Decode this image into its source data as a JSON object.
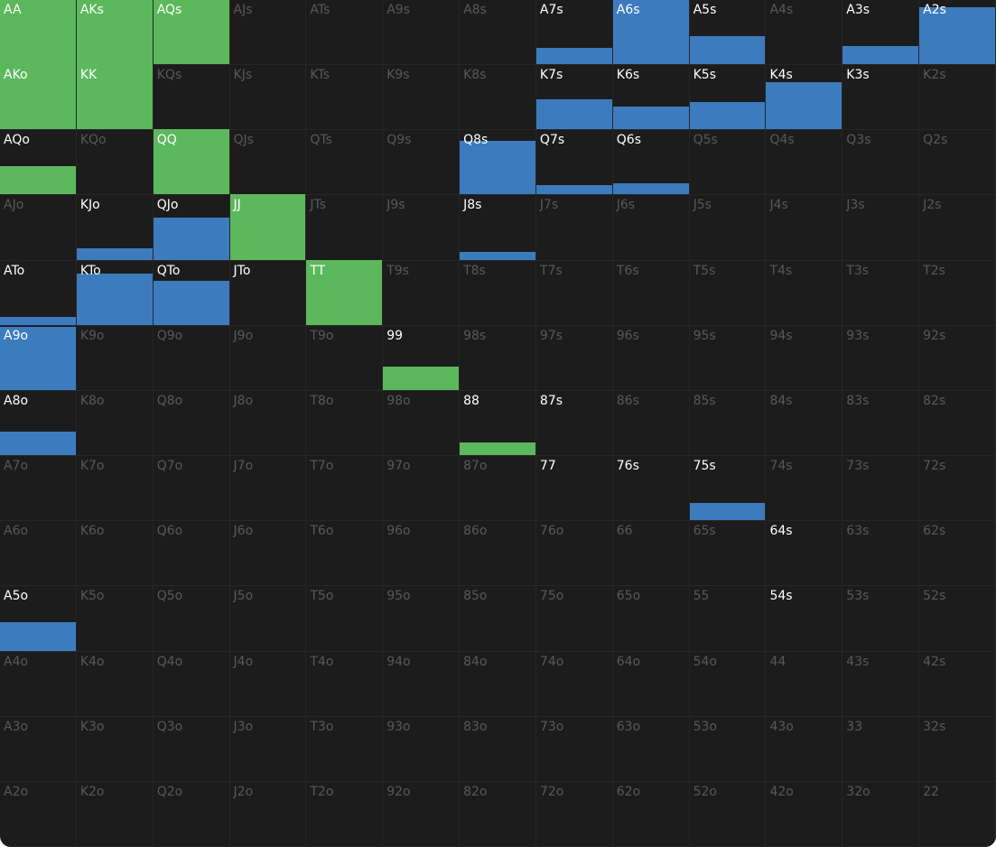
{
  "grid": {
    "rows": [
      [
        {
          "label": "AA",
          "active": true,
          "freq": 100,
          "color": "#5cb85c"
        },
        {
          "label": "AKs",
          "active": true,
          "freq": 100,
          "color": "#5cb85c"
        },
        {
          "label": "AQs",
          "active": true,
          "freq": 100,
          "color": "#5cb85c"
        },
        {
          "label": "AJs"
        },
        {
          "label": "ATs"
        },
        {
          "label": "A9s"
        },
        {
          "label": "A8s"
        },
        {
          "label": "A7s",
          "active": true,
          "freq": 25,
          "color": "#3d7bbf"
        },
        {
          "label": "A6s",
          "active": true,
          "freq": 100,
          "color": "#3d7bbf"
        },
        {
          "label": "A5s",
          "active": true,
          "freq": 43,
          "color": "#3d7bbf"
        },
        {
          "label": "A4s"
        },
        {
          "label": "A3s",
          "active": true,
          "freq": 28,
          "color": "#3d7bbf"
        },
        {
          "label": "A2s",
          "active": true,
          "freq": 88,
          "color": "#3d7bbf"
        }
      ],
      [
        {
          "label": "AKo",
          "active": true,
          "freq": 100,
          "color": "#5cb85c"
        },
        {
          "label": "KK",
          "active": true,
          "freq": 100,
          "color": "#5cb85c"
        },
        {
          "label": "KQs"
        },
        {
          "label": "KJs"
        },
        {
          "label": "KTs"
        },
        {
          "label": "K9s"
        },
        {
          "label": "K8s"
        },
        {
          "label": "K7s",
          "active": true,
          "freq": 46,
          "color": "#3d7bbf"
        },
        {
          "label": "K6s",
          "active": true,
          "freq": 35,
          "color": "#3d7bbf"
        },
        {
          "label": "K5s",
          "active": true,
          "freq": 42,
          "color": "#3d7bbf"
        },
        {
          "label": "K4s",
          "active": true,
          "freq": 72,
          "color": "#3d7bbf"
        },
        {
          "label": "K3s",
          "active": true
        },
        {
          "label": "K2s"
        }
      ],
      [
        {
          "label": "AQo",
          "active": true,
          "freq": 43,
          "color": "#5cb85c"
        },
        {
          "label": "KQo"
        },
        {
          "label": "QQ",
          "active": true,
          "freq": 100,
          "color": "#5cb85c"
        },
        {
          "label": "QJs"
        },
        {
          "label": "QTs"
        },
        {
          "label": "Q9s"
        },
        {
          "label": "Q8s",
          "active": true,
          "freq": 82,
          "color": "#3d7bbf"
        },
        {
          "label": "Q7s",
          "active": true,
          "freq": 14,
          "color": "#3d7bbf"
        },
        {
          "label": "Q6s",
          "active": true,
          "freq": 17,
          "color": "#3d7bbf"
        },
        {
          "label": "Q5s"
        },
        {
          "label": "Q4s"
        },
        {
          "label": "Q3s"
        },
        {
          "label": "Q2s"
        }
      ],
      [
        {
          "label": "AJo"
        },
        {
          "label": "KJo",
          "active": true,
          "freq": 18,
          "color": "#3d7bbf"
        },
        {
          "label": "QJo",
          "active": true,
          "freq": 64,
          "color": "#3d7bbf"
        },
        {
          "label": "JJ",
          "active": true,
          "freq": 100,
          "color": "#5cb85c"
        },
        {
          "label": "JTs"
        },
        {
          "label": "J9s"
        },
        {
          "label": "J8s",
          "active": true,
          "freq": 12,
          "color": "#3d7bbf"
        },
        {
          "label": "J7s"
        },
        {
          "label": "J6s"
        },
        {
          "label": "J5s"
        },
        {
          "label": "J4s"
        },
        {
          "label": "J3s"
        },
        {
          "label": "J2s"
        }
      ],
      [
        {
          "label": "ATo",
          "active": true,
          "freq": 12,
          "color": "#3d7bbf"
        },
        {
          "label": "KTo",
          "active": true,
          "freq": 79,
          "color": "#3d7bbf"
        },
        {
          "label": "QTo",
          "active": true,
          "freq": 67,
          "color": "#3d7bbf"
        },
        {
          "label": "JTo",
          "active": true
        },
        {
          "label": "TT",
          "active": true,
          "freq": 100,
          "color": "#5cb85c"
        },
        {
          "label": "T9s"
        },
        {
          "label": "T8s"
        },
        {
          "label": "T7s"
        },
        {
          "label": "T6s"
        },
        {
          "label": "T5s"
        },
        {
          "label": "T4s"
        },
        {
          "label": "T3s"
        },
        {
          "label": "T2s"
        }
      ],
      [
        {
          "label": "A9o",
          "active": true,
          "freq": 97,
          "color": "#3d7bbf"
        },
        {
          "label": "K9o"
        },
        {
          "label": "Q9o"
        },
        {
          "label": "J9o"
        },
        {
          "label": "T9o"
        },
        {
          "label": "99",
          "active": true,
          "freq": 36,
          "color": "#5cb85c"
        },
        {
          "label": "98s"
        },
        {
          "label": "97s"
        },
        {
          "label": "96s"
        },
        {
          "label": "95s"
        },
        {
          "label": "94s"
        },
        {
          "label": "93s"
        },
        {
          "label": "92s"
        }
      ],
      [
        {
          "label": "A8o",
          "active": true,
          "freq": 36,
          "color": "#3d7bbf"
        },
        {
          "label": "K8o"
        },
        {
          "label": "Q8o"
        },
        {
          "label": "J8o"
        },
        {
          "label": "T8o"
        },
        {
          "label": "98o"
        },
        {
          "label": "88",
          "active": true,
          "freq": 19,
          "color": "#5cb85c"
        },
        {
          "label": "87s",
          "active": true
        },
        {
          "label": "86s"
        },
        {
          "label": "85s"
        },
        {
          "label": "84s"
        },
        {
          "label": "83s"
        },
        {
          "label": "82s"
        }
      ],
      [
        {
          "label": "A7o"
        },
        {
          "label": "K7o"
        },
        {
          "label": "Q7o"
        },
        {
          "label": "J7o"
        },
        {
          "label": "T7o"
        },
        {
          "label": "97o"
        },
        {
          "label": "87o"
        },
        {
          "label": "77",
          "active": true
        },
        {
          "label": "76s",
          "active": true
        },
        {
          "label": "75s",
          "active": true,
          "freq": 26,
          "color": "#3d7bbf"
        },
        {
          "label": "74s"
        },
        {
          "label": "73s"
        },
        {
          "label": "72s"
        }
      ],
      [
        {
          "label": "A6o"
        },
        {
          "label": "K6o"
        },
        {
          "label": "Q6o"
        },
        {
          "label": "J6o"
        },
        {
          "label": "T6o"
        },
        {
          "label": "96o"
        },
        {
          "label": "86o"
        },
        {
          "label": "76o"
        },
        {
          "label": "66"
        },
        {
          "label": "65s"
        },
        {
          "label": "64s",
          "active": true
        },
        {
          "label": "63s"
        },
        {
          "label": "62s"
        }
      ],
      [
        {
          "label": "A5o",
          "active": true,
          "freq": 44,
          "color": "#3d7bbf"
        },
        {
          "label": "K5o"
        },
        {
          "label": "Q5o"
        },
        {
          "label": "J5o"
        },
        {
          "label": "T5o"
        },
        {
          "label": "95o"
        },
        {
          "label": "85o"
        },
        {
          "label": "75o"
        },
        {
          "label": "65o"
        },
        {
          "label": "55"
        },
        {
          "label": "54s",
          "active": true
        },
        {
          "label": "53s"
        },
        {
          "label": "52s"
        }
      ],
      [
        {
          "label": "A4o"
        },
        {
          "label": "K4o"
        },
        {
          "label": "Q4o"
        },
        {
          "label": "J4o"
        },
        {
          "label": "T4o"
        },
        {
          "label": "94o"
        },
        {
          "label": "84o"
        },
        {
          "label": "74o"
        },
        {
          "label": "64o"
        },
        {
          "label": "54o"
        },
        {
          "label": "44"
        },
        {
          "label": "43s"
        },
        {
          "label": "42s"
        }
      ],
      [
        {
          "label": "A3o"
        },
        {
          "label": "K3o"
        },
        {
          "label": "Q3o"
        },
        {
          "label": "J3o"
        },
        {
          "label": "T3o"
        },
        {
          "label": "93o"
        },
        {
          "label": "83o"
        },
        {
          "label": "73o"
        },
        {
          "label": "63o"
        },
        {
          "label": "53o"
        },
        {
          "label": "43o"
        },
        {
          "label": "33"
        },
        {
          "label": "32s"
        }
      ],
      [
        {
          "label": "A2o"
        },
        {
          "label": "K2o"
        },
        {
          "label": "Q2o"
        },
        {
          "label": "J2o"
        },
        {
          "label": "T2o"
        },
        {
          "label": "92o"
        },
        {
          "label": "82o"
        },
        {
          "label": "72o"
        },
        {
          "label": "62o"
        },
        {
          "label": "52o"
        },
        {
          "label": "42o"
        },
        {
          "label": "32o"
        },
        {
          "label": "22"
        }
      ]
    ]
  }
}
